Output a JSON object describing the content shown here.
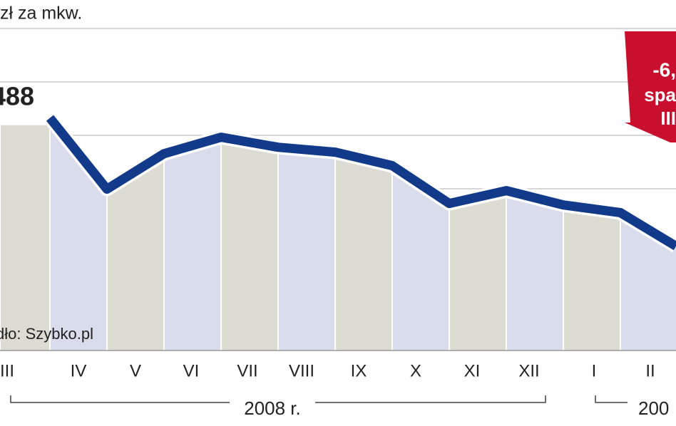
{
  "chart_data": {
    "type": "line",
    "unit_label": "zł za mkw.",
    "peak_label": "488",
    "source": "dło: Szybko.pl",
    "callout": [
      "-6,",
      "spa",
      "III"
    ],
    "categories": [
      "III",
      "IV",
      "V",
      "VI",
      "VII",
      "VIII",
      "IX",
      "X",
      "XI",
      "XII",
      "I",
      "II"
    ],
    "year_labels": [
      "2008 r.",
      "200"
    ],
    "series": [
      {
        "color": "#123a8a",
        "values": [
          8488,
          8155,
          8321,
          8398,
          8351,
          8328,
          8265,
          8088,
          8148,
          8081,
          8045,
          7888
        ]
      }
    ],
    "ylim": [
      7400,
      9040
    ],
    "band_colors": [
      "#dcdcd2",
      "#d8dceb"
    ],
    "callout_color": "#c8102e"
  }
}
